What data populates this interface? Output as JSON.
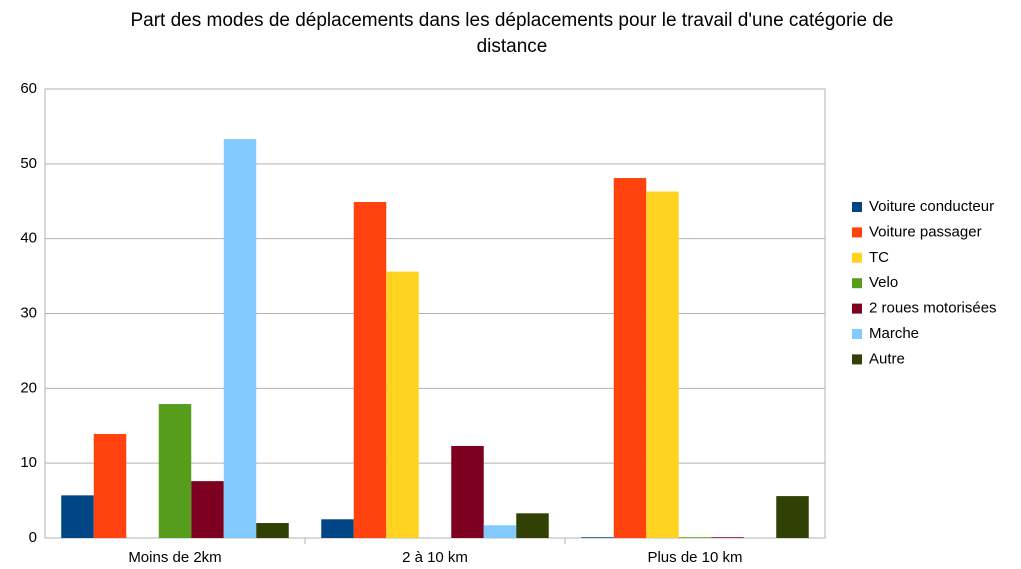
{
  "chart_data": {
    "type": "bar",
    "title": "Part des modes de déplacements dans les déplacements pour le travail d'une catégorie de distance",
    "categories": [
      "Moins de 2km",
      "2 à 10 km",
      "Plus de 10 km"
    ],
    "series": [
      {
        "name": "Voiture conducteur",
        "color": "#004586",
        "values": [
          5.7,
          2.5,
          0.1
        ]
      },
      {
        "name": "Voiture passager",
        "color": "#ff420e",
        "values": [
          13.9,
          44.9,
          48.1
        ]
      },
      {
        "name": "TC",
        "color": "#ffd320",
        "values": [
          0,
          35.6,
          46.3
        ]
      },
      {
        "name": "Velo",
        "color": "#579d1c",
        "values": [
          17.9,
          0,
          0.1
        ]
      },
      {
        "name": "2 roues motorisées",
        "color": "#7e0021",
        "values": [
          7.6,
          12.3,
          0.1
        ]
      },
      {
        "name": "Marche",
        "color": "#83caff",
        "values": [
          53.3,
          1.7,
          0
        ]
      },
      {
        "name": "Autre",
        "color": "#314004",
        "values": [
          2.0,
          3.3,
          5.6
        ]
      }
    ],
    "ylim": [
      0,
      60
    ],
    "yticks": [
      0,
      10,
      20,
      30,
      40,
      50,
      60
    ],
    "grid": true,
    "legend": "right"
  }
}
